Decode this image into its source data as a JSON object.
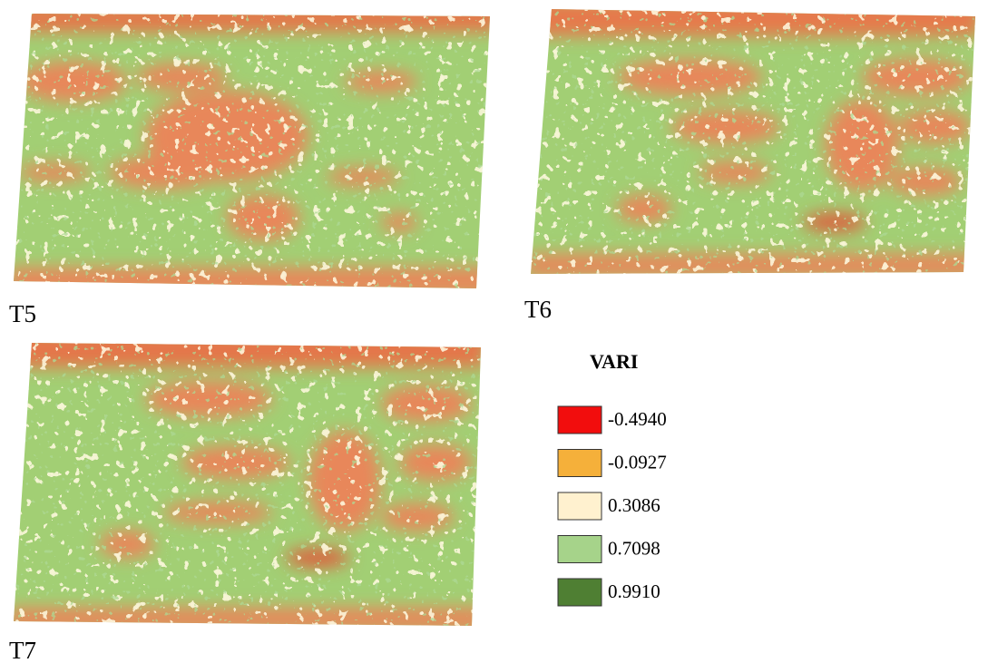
{
  "panels": [
    {
      "label": "T5"
    },
    {
      "label": "T6"
    },
    {
      "label": "T7"
    }
  ],
  "legend": {
    "title": "VARI",
    "items": [
      {
        "label": "-0.4940",
        "color": "#f20d0d"
      },
      {
        "label": "-0.0927",
        "color": "#f5b03a"
      },
      {
        "label": "0.3086",
        "color": "#fff1cf"
      },
      {
        "label": "0.7098",
        "color": "#a6d38a"
      },
      {
        "label": "0.9910",
        "color": "#4f7f33"
      }
    ]
  }
}
